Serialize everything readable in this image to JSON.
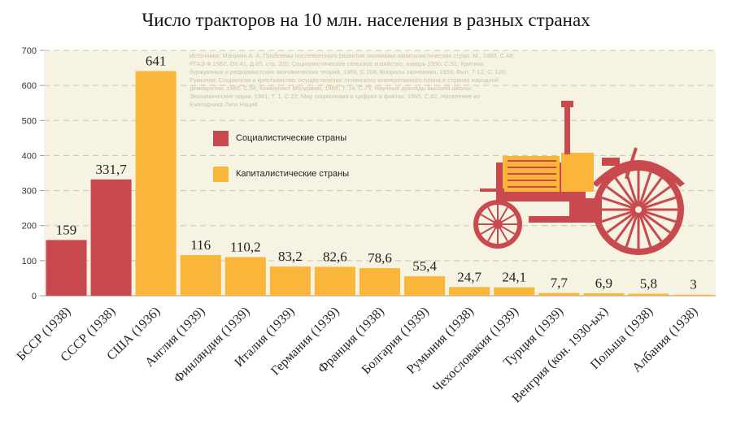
{
  "colors": {
    "socialist": "#c94a4e",
    "capitalist": "#f9b63a",
    "plot_bg": "#f7f3e3",
    "grid": "#c9c5b5"
  },
  "source_note": "Источники: Манукин А. А. Проблемы послевоенного развития экономики капиталистических стран. М., 1960, С.48; РГАЭ Ф.1562, Оп.41, Д.65, стр. 320; Социалистическое сельское хозяйство, январь 1950, С.51; Критика буржуазных и реформистских экономических теорий, 1969, С.104; Вопросы экономики, 1959, Вып. 7-12, С. 126; Румыния: Социализм и крестьянство: осуществление ленинского кооперативного плана в странах народной демократии, 1960, С.94; Коммунист Молдавии, 1969, Т. 14, С.75; Научные доклады высшей школы: Экономические науки, 1961, Т. 1, С.22; Мир социализма в цифрах и фактах, 1965, С.62; Население из Ежегодника Лиги Наций",
  "chart_data": {
    "type": "bar",
    "title": "Число тракторов на 10 млн. населения в разных странах",
    "categories": [
      "БССР (1938)",
      "СССР (1938)",
      "США (1936)",
      "Англия (1939)",
      "Финляндия (1939)",
      "Италия (1939)",
      "Германия (1939)",
      "Франция (1938)",
      "Болгария (1939)",
      "Румыния (1938)",
      "Чехословакия (1939)",
      "Турция (1939)",
      "Венгрия (кон. 1930-ых)",
      "Польша (1938)",
      "Албания (1938)"
    ],
    "values": [
      159,
      331.7,
      641,
      116,
      110.2,
      83.2,
      82.6,
      78.6,
      55.4,
      24.7,
      24.1,
      7.7,
      6.9,
      5.8,
      3
    ],
    "value_labels": [
      "159",
      "331,7",
      "641",
      "116",
      "110,2",
      "83,2",
      "82,6",
      "78,6",
      "55,4",
      "24,7",
      "24,1",
      "7,7",
      "6,9",
      "5,8",
      "3"
    ],
    "groups": [
      "socialist",
      "socialist",
      "capitalist",
      "capitalist",
      "capitalist",
      "capitalist",
      "capitalist",
      "capitalist",
      "capitalist",
      "capitalist",
      "capitalist",
      "capitalist",
      "capitalist",
      "capitalist",
      "capitalist"
    ],
    "legend": [
      {
        "key": "socialist",
        "label": "Социалистические страны"
      },
      {
        "key": "capitalist",
        "label": "Капиталистические страны"
      }
    ],
    "ylim": [
      0,
      700
    ],
    "yticks": [
      0,
      100,
      200,
      300,
      400,
      500,
      600,
      700
    ],
    "grid": true,
    "legend_position": "top-center"
  }
}
